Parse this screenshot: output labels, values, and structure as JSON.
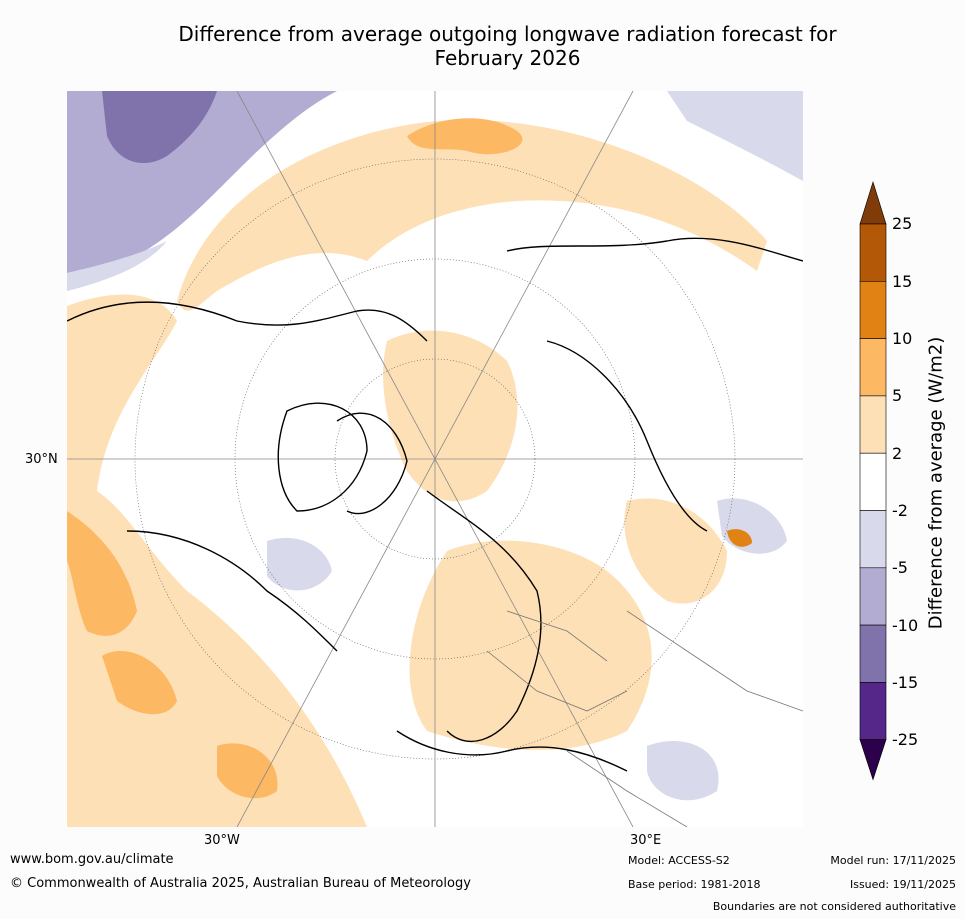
{
  "title_line1": "Difference from average outgoing longwave radiation forecast for",
  "title_line2": "February 2026",
  "map": {
    "lat_label": "30°N",
    "lon_labels": [
      "30°W",
      "30°E"
    ]
  },
  "colorbar": {
    "label": "Difference from average (W/m2)",
    "ticks": [
      "25",
      "15",
      "10",
      "5",
      "2",
      "-2",
      "-5",
      "-10",
      "-15",
      "-25"
    ],
    "colors": {
      "above_25": "#7f3b08",
      "15_25": "#b35806",
      "10_15": "#e08214",
      "5_10": "#fdb863",
      "2_5": "#fee0b6",
      "-2_2": "#ffffff",
      "-5_-2": "#d8daeb",
      "-10_-5": "#b2abd2",
      "-15_-10": "#8073ac",
      "-25_-15": "#542788",
      "below_-25": "#2d004b"
    }
  },
  "footer": {
    "website": "www.bom.gov.au/climate",
    "copyright": "© Commonwealth of Australia 2025, Australian Bureau of Meteorology",
    "model": "Model: ACCESS-S2",
    "base_period": "Base period: 1981-2018",
    "model_run": "Model run: 17/11/2025",
    "issued": "Issued: 19/11/2025",
    "disclaimer": "Boundaries are not considered authoritative"
  }
}
